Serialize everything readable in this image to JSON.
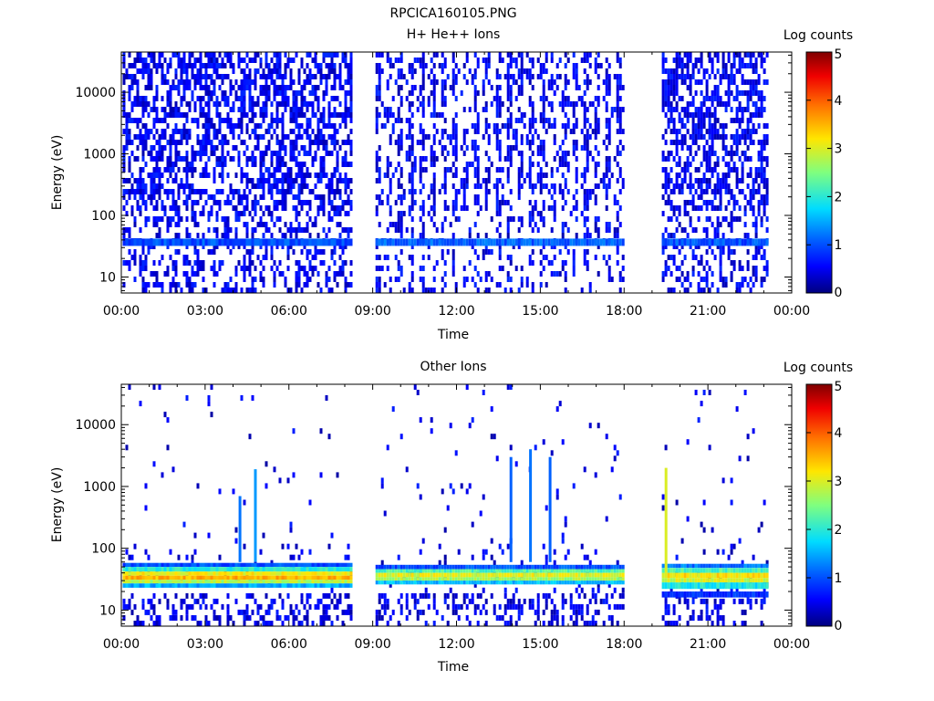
{
  "figure": {
    "title": "RPCICA160105.PNG"
  },
  "chart_data": [
    {
      "type": "heatmap",
      "title": "H+ He++ Ions",
      "xlabel": "Time",
      "ylabel": "Energy (eV)",
      "x_tick_labels": [
        "00:00",
        "03:00",
        "06:00",
        "09:00",
        "12:00",
        "15:00",
        "18:00",
        "21:00",
        "00:00"
      ],
      "x_range_hours": [
        0,
        24
      ],
      "y_scale": "log",
      "y_tick_labels": [
        "10",
        "100",
        "1000",
        "10000"
      ],
      "y_tick_values": [
        10,
        100,
        1000,
        10000
      ],
      "y_range": [
        5.5,
        45000
      ],
      "colorbar": {
        "label": "Log counts",
        "min": 0,
        "max": 5,
        "tick_labels": [
          "0",
          "1",
          "2",
          "3",
          "4",
          "5"
        ]
      },
      "data_intervals_hours": [
        [
          0.05,
          8.2
        ],
        [
          9.1,
          18.0
        ],
        [
          19.35,
          23.15
        ]
      ],
      "bands": [
        {
          "interval": 0,
          "energy_range": [
            32,
            42
          ],
          "log_counts": 1.0
        },
        {
          "interval": 1,
          "energy_range": [
            32,
            42
          ],
          "log_counts": 1.1
        },
        {
          "interval": 2,
          "energy_range": [
            32,
            42
          ],
          "log_counts": 1.0
        }
      ],
      "background_log_counts": 0.2
    },
    {
      "type": "heatmap",
      "title": "Other Ions",
      "xlabel": "Time",
      "ylabel": "Energy (eV)",
      "x_tick_labels": [
        "00:00",
        "03:00",
        "06:00",
        "09:00",
        "12:00",
        "15:00",
        "18:00",
        "21:00",
        "00:00"
      ],
      "x_range_hours": [
        0,
        24
      ],
      "y_scale": "log",
      "y_tick_labels": [
        "10",
        "100",
        "1000",
        "10000"
      ],
      "y_tick_values": [
        10,
        100,
        1000,
        10000
      ],
      "y_range": [
        5.5,
        45000
      ],
      "colorbar": {
        "label": "Log counts",
        "min": 0,
        "max": 5,
        "tick_labels": [
          "0",
          "1",
          "2",
          "3",
          "4",
          "5"
        ]
      },
      "data_intervals_hours": [
        [
          0.05,
          8.2
        ],
        [
          9.1,
          18.0
        ],
        [
          19.35,
          23.15
        ]
      ],
      "bands": [
        {
          "interval": 0,
          "energy_range": [
            50,
            58
          ],
          "log_counts": 1.0
        },
        {
          "interval": 0,
          "energy_range": [
            42,
            50
          ],
          "log_counts": 2.0
        },
        {
          "interval": 0,
          "energy_range": [
            36,
            42
          ],
          "log_counts": 3.1
        },
        {
          "interval": 0,
          "energy_range": [
            31,
            36
          ],
          "log_counts": 3.5
        },
        {
          "interval": 0,
          "energy_range": [
            27,
            31
          ],
          "log_counts": 2.8
        },
        {
          "interval": 0,
          "energy_range": [
            23,
            27
          ],
          "log_counts": 1.5
        },
        {
          "interval": 1,
          "energy_range": [
            46,
            54
          ],
          "log_counts": 1.0
        },
        {
          "interval": 1,
          "energy_range": [
            40,
            46
          ],
          "log_counts": 2.2
        },
        {
          "interval": 1,
          "energy_range": [
            34,
            40
          ],
          "log_counts": 3.0
        },
        {
          "interval": 1,
          "energy_range": [
            30,
            34
          ],
          "log_counts": 2.7
        },
        {
          "interval": 1,
          "energy_range": [
            26,
            30
          ],
          "log_counts": 1.6
        },
        {
          "interval": 2,
          "energy_range": [
            48,
            56
          ],
          "log_counts": 1.2
        },
        {
          "interval": 2,
          "energy_range": [
            40,
            48
          ],
          "log_counts": 2.2
        },
        {
          "interval": 2,
          "energy_range": [
            33,
            40
          ],
          "log_counts": 3.2
        },
        {
          "interval": 2,
          "energy_range": [
            28,
            33
          ],
          "log_counts": 2.9
        },
        {
          "interval": 2,
          "energy_range": [
            22,
            28
          ],
          "log_counts": 1.9
        },
        {
          "interval": 2,
          "energy_range": [
            16,
            20
          ],
          "log_counts": 0.8
        }
      ],
      "spikes": [
        {
          "hour": 4.2,
          "energy_range": [
            60,
            700
          ],
          "log_counts": 1.2
        },
        {
          "hour": 4.75,
          "energy_range": [
            60,
            1900
          ],
          "log_counts": 1.4
        },
        {
          "hour": 13.9,
          "energy_range": [
            60,
            3000
          ],
          "log_counts": 1.1
        },
        {
          "hour": 14.6,
          "energy_range": [
            60,
            4000
          ],
          "log_counts": 1.2
        },
        {
          "hour": 15.3,
          "energy_range": [
            60,
            3000
          ],
          "log_counts": 1.1
        },
        {
          "hour": 19.45,
          "energy_range": [
            40,
            2000
          ],
          "log_counts": 3.0
        }
      ],
      "background_log_counts": 0.15
    }
  ]
}
